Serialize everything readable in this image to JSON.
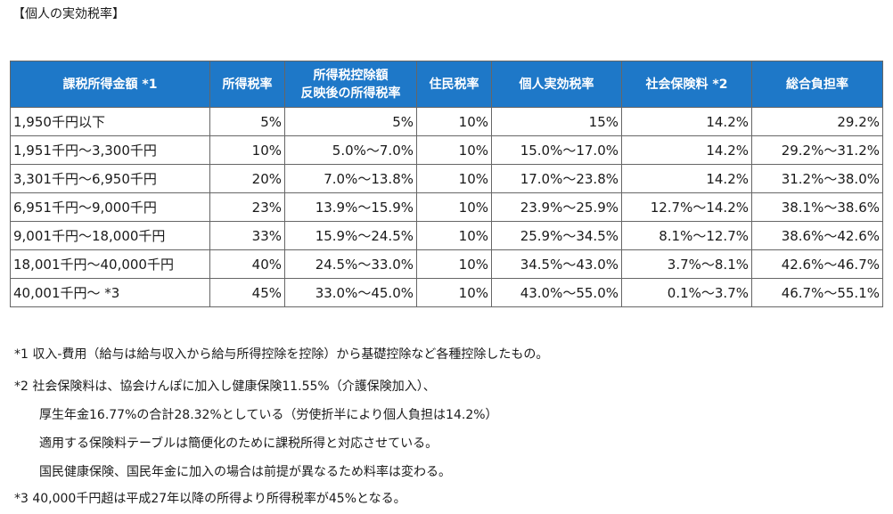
{
  "title": "【個人の実効税率】",
  "table": {
    "headers": [
      [
        "課税所得金額 *1"
      ],
      [
        "所得税率"
      ],
      [
        "所得税控除額",
        "反映後の所得税率"
      ],
      [
        "住民税率"
      ],
      [
        "個人実効税率"
      ],
      [
        "社会保険料 *2"
      ],
      [
        "総合負担率"
      ]
    ],
    "rows": [
      [
        "1,950千円以下",
        "5%",
        "5%",
        "10%",
        "15%",
        "14.2%",
        "29.2%"
      ],
      [
        "1,951千円～3,300千円",
        "10%",
        "5.0%～7.0%",
        "10%",
        "15.0%～17.0%",
        "14.2%",
        "29.2%～31.2%"
      ],
      [
        "3,301千円～6,950千円",
        "20%",
        "7.0%～13.8%",
        "10%",
        "17.0%～23.8%",
        "14.2%",
        "31.2%～38.0%"
      ],
      [
        "6,951千円～9,000千円",
        "23%",
        "13.9%～15.9%",
        "10%",
        "23.9%～25.9%",
        "12.7%～14.2%",
        "38.1%～38.6%"
      ],
      [
        "9,001千円～18,000千円",
        "33%",
        "15.9%～24.5%",
        "10%",
        "25.9%～34.5%",
        "8.1%～12.7%",
        "38.6%～42.6%"
      ],
      [
        "18,001千円～40,000千円",
        "40%",
        "24.5%～33.0%",
        "10%",
        "34.5%～43.0%",
        "3.7%～8.1%",
        "42.6%～46.7%"
      ],
      [
        "40,001千円～ *3",
        "45%",
        "33.0%～45.0%",
        "10%",
        "43.0%～55.0%",
        "0.1%～3.7%",
        "46.7%～55.1%"
      ]
    ]
  },
  "notes": [
    "*1 収入-費用（給与は給与収入から給与所得控除を控除）から基礎控除など各種控除したもの。",
    "*2 社会保険料は、協会けんぽに加入し健康保険11.55%（介護保険加入）、",
    "厚生年金16.77%の合計28.32%としている（労使折半により個人負担は14.2%）",
    "適用する保険料テーブルは簡便化のために課税所得と対応させている。",
    "国民健康保険、国民年金に加入の場合は前提が異なるため料率は変わる。",
    "*3 40,000千円超は平成27年以降の所得より所得税率が45%となる。"
  ],
  "colors": {
    "header_bg": "#1e78c8",
    "header_text": "#ffffff",
    "border": "#666666"
  }
}
